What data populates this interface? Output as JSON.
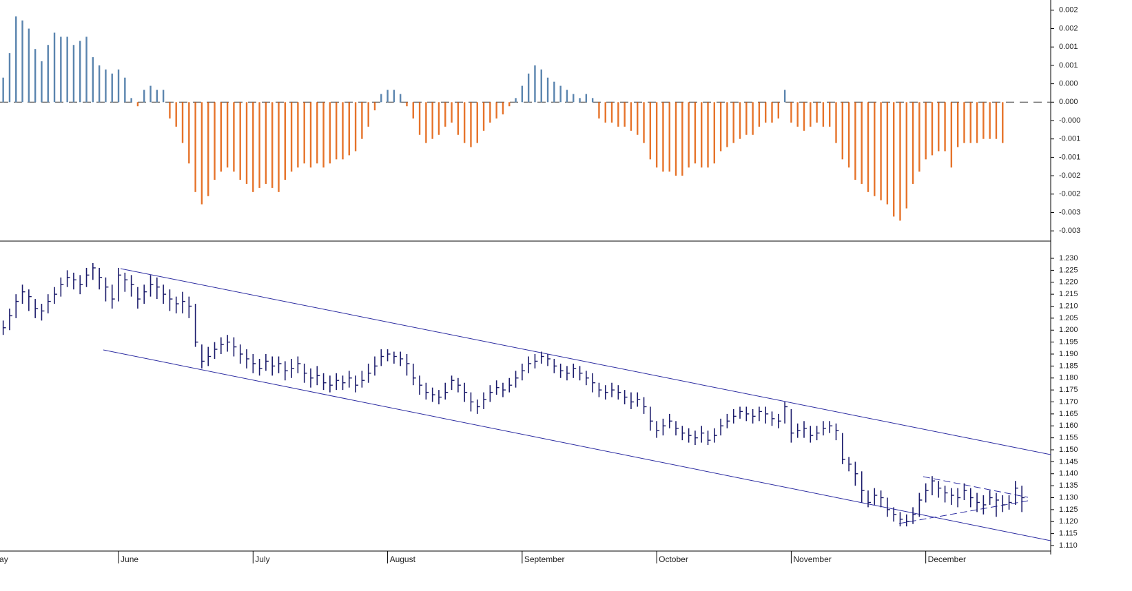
{
  "chart_data": [
    {
      "type": "histogram_bar",
      "color": "#5a84ae",
      "negative_color": "#e6732a",
      "zero_line": "dashed",
      "xlim": [
        -0.5,
        163.5
      ],
      "ylim": [
        -0.0034,
        0.0025
      ],
      "yticks": [
        {
          "value": 0.00225,
          "label": "0.002"
        },
        {
          "value": 0.0018,
          "label": "0.002"
        },
        {
          "value": 0.00135,
          "label": "0.001"
        },
        {
          "value": 0.0009,
          "label": "0.001"
        },
        {
          "value": 0.00045,
          "label": "0.000"
        },
        {
          "value": 0,
          "label": "0.000"
        },
        {
          "value": -0.00045,
          "label": "-0.000"
        },
        {
          "value": -0.0009,
          "label": "-0.001"
        },
        {
          "value": -0.00135,
          "label": "-0.001"
        },
        {
          "value": -0.0018,
          "label": "-0.002"
        },
        {
          "value": -0.00225,
          "label": "-0.002"
        },
        {
          "value": -0.0027,
          "label": "-0.003"
        },
        {
          "value": -0.00315,
          "label": "-0.003"
        }
      ],
      "values": [
        0.0006,
        0.0012,
        0.0021,
        0.002,
        0.0018,
        0.0013,
        0.001,
        0.0014,
        0.0017,
        0.0016,
        0.0016,
        0.0014,
        0.0015,
        0.0016,
        0.0011,
        0.0009,
        0.0008,
        0.0007,
        0.0008,
        0.0006,
        0.0001,
        -0.0001,
        0.0003,
        0.0004,
        0.0003,
        0.0003,
        -0.0004,
        -0.0006,
        -0.001,
        -0.0015,
        -0.0022,
        -0.0025,
        -0.0023,
        -0.0019,
        -0.0017,
        -0.0016,
        -0.0017,
        -0.0019,
        -0.002,
        -0.0022,
        -0.0021,
        -0.002,
        -0.0021,
        -0.0022,
        -0.0019,
        -0.0017,
        -0.0016,
        -0.0015,
        -0.0016,
        -0.0015,
        -0.0016,
        -0.0015,
        -0.0014,
        -0.0014,
        -0.0013,
        -0.0012,
        -0.0009,
        -0.0006,
        -0.0002,
        0.0002,
        0.0003,
        0.0003,
        0.0002,
        -0.0001,
        -0.0004,
        -0.0008,
        -0.001,
        -0.0009,
        -0.0008,
        -0.0006,
        -0.0005,
        -0.0008,
        -0.001,
        -0.0011,
        -0.001,
        -0.0007,
        -0.0005,
        -0.0004,
        -0.0003,
        -0.0001,
        0.0001,
        0.0004,
        0.0007,
        0.0009,
        0.0008,
        0.0006,
        0.0005,
        0.0004,
        0.0003,
        0.0002,
        0.0001,
        0.0002,
        0.0001,
        -0.0004,
        -0.0005,
        -0.0005,
        -0.0006,
        -0.0006,
        -0.0007,
        -0.0008,
        -0.001,
        -0.0014,
        -0.0016,
        -0.0017,
        -0.0017,
        -0.0018,
        -0.0018,
        -0.0016,
        -0.0015,
        -0.0016,
        -0.0016,
        -0.0015,
        -0.0012,
        -0.0011,
        -0.001,
        -0.0009,
        -0.0008,
        -0.0008,
        -0.0006,
        -0.0005,
        -0.0005,
        -0.0004,
        0.0003,
        -0.0005,
        -0.0006,
        -0.0007,
        -0.0006,
        -0.0005,
        -0.0006,
        -0.0006,
        -0.001,
        -0.0014,
        -0.0016,
        -0.0019,
        -0.002,
        -0.0022,
        -0.0023,
        -0.0024,
        -0.0025,
        -0.0028,
        -0.0029,
        -0.0026,
        -0.002,
        -0.0017,
        -0.0014,
        -0.0013,
        -0.0012,
        -0.0012,
        -0.0016,
        -0.0011,
        -0.001,
        -0.001,
        -0.001,
        -0.0009,
        -0.0009,
        -0.0009,
        -0.001,
        null,
        null,
        null
      ]
    },
    {
      "type": "ohlc",
      "color": "#1b1b6b",
      "xlim": [
        -0.5,
        163.5
      ],
      "ylim": [
        1.1077,
        1.2372
      ],
      "xticks": [
        {
          "value": -2,
          "label": "May"
        },
        {
          "value": 18,
          "label": "June"
        },
        {
          "value": 39,
          "label": "July"
        },
        {
          "value": 60,
          "label": "August"
        },
        {
          "value": 81,
          "label": "September"
        },
        {
          "value": 102,
          "label": "October"
        },
        {
          "value": 123,
          "label": "November"
        },
        {
          "value": 144,
          "label": "December"
        }
      ],
      "yticks": [
        {
          "value": 1.11,
          "label": "1.110"
        },
        {
          "value": 1.115,
          "label": "1.115"
        },
        {
          "value": 1.12,
          "label": "1.120"
        },
        {
          "value": 1.125,
          "label": "1.125"
        },
        {
          "value": 1.13,
          "label": "1.130"
        },
        {
          "value": 1.135,
          "label": "1.135"
        },
        {
          "value": 1.14,
          "label": "1.140"
        },
        {
          "value": 1.145,
          "label": "1.145"
        },
        {
          "value": 1.15,
          "label": "1.150"
        },
        {
          "value": 1.155,
          "label": "1.155"
        },
        {
          "value": 1.16,
          "label": "1.160"
        },
        {
          "value": 1.165,
          "label": "1.165"
        },
        {
          "value": 1.17,
          "label": "1.170"
        },
        {
          "value": 1.175,
          "label": "1.175"
        },
        {
          "value": 1.18,
          "label": "1.180"
        },
        {
          "value": 1.185,
          "label": "1.185"
        },
        {
          "value": 1.19,
          "label": "1.190"
        },
        {
          "value": 1.195,
          "label": "1.195"
        },
        {
          "value": 1.2,
          "label": "1.200"
        },
        {
          "value": 1.205,
          "label": "1.205"
        },
        {
          "value": 1.21,
          "label": "1.210"
        },
        {
          "value": 1.215,
          "label": "1.215"
        },
        {
          "value": 1.22,
          "label": "1.220"
        },
        {
          "value": 1.225,
          "label": "1.225"
        },
        {
          "value": 1.23,
          "label": "1.230"
        }
      ],
      "high": [
        1.204,
        1.209,
        1.215,
        1.219,
        1.217,
        1.213,
        1.211,
        1.215,
        1.218,
        1.222,
        1.225,
        1.224,
        1.223,
        1.226,
        1.228,
        1.226,
        1.222,
        1.219,
        1.226,
        1.224,
        1.223,
        1.218,
        1.219,
        1.223,
        1.222,
        1.219,
        1.217,
        1.214,
        1.216,
        1.214,
        1.211,
        1.194,
        1.193,
        1.195,
        1.197,
        1.198,
        1.197,
        1.194,
        1.192,
        1.19,
        1.188,
        1.19,
        1.189,
        1.189,
        1.187,
        1.188,
        1.189,
        1.186,
        1.184,
        1.185,
        1.182,
        1.181,
        1.182,
        1.181,
        1.183,
        1.181,
        1.183,
        1.186,
        1.189,
        1.192,
        1.192,
        1.191,
        1.191,
        1.19,
        1.186,
        1.181,
        1.178,
        1.176,
        1.175,
        1.178,
        1.181,
        1.18,
        1.178,
        1.174,
        1.171,
        1.174,
        1.177,
        1.179,
        1.178,
        1.18,
        1.183,
        1.186,
        1.189,
        1.19,
        1.191,
        1.19,
        1.188,
        1.186,
        1.185,
        1.186,
        1.185,
        1.183,
        1.182,
        1.178,
        1.177,
        1.178,
        1.177,
        1.175,
        1.174,
        1.174,
        1.172,
        1.168,
        1.162,
        1.163,
        1.165,
        1.162,
        1.16,
        1.159,
        1.158,
        1.16,
        1.158,
        1.159,
        1.163,
        1.165,
        1.167,
        1.168,
        1.168,
        1.167,
        1.168,
        1.168,
        1.166,
        1.165,
        1.17,
        1.167,
        1.161,
        1.162,
        1.16,
        1.16,
        1.162,
        1.162,
        1.161,
        1.157,
        1.147,
        1.145,
        1.141,
        1.133,
        1.134,
        1.133,
        1.13,
        1.126,
        1.124,
        1.123,
        1.126,
        1.132,
        1.136,
        1.139,
        1.137,
        1.135,
        1.134,
        1.134,
        1.136,
        1.134,
        1.132,
        1.131,
        1.133,
        1.132,
        1.131,
        1.131,
        1.137,
        1.135
      ],
      "low": [
        1.198,
        1.2,
        1.205,
        1.211,
        1.208,
        1.205,
        1.204,
        1.207,
        1.211,
        1.214,
        1.218,
        1.217,
        1.215,
        1.218,
        1.221,
        1.217,
        1.212,
        1.209,
        1.212,
        1.216,
        1.214,
        1.209,
        1.211,
        1.214,
        1.213,
        1.211,
        1.208,
        1.207,
        1.207,
        1.205,
        1.193,
        1.184,
        1.185,
        1.188,
        1.19,
        1.191,
        1.189,
        1.186,
        1.184,
        1.182,
        1.181,
        1.183,
        1.181,
        1.182,
        1.179,
        1.18,
        1.182,
        1.178,
        1.176,
        1.177,
        1.175,
        1.174,
        1.175,
        1.175,
        1.176,
        1.174,
        1.176,
        1.178,
        1.181,
        1.185,
        1.187,
        1.186,
        1.185,
        1.181,
        1.177,
        1.173,
        1.171,
        1.17,
        1.169,
        1.171,
        1.175,
        1.174,
        1.17,
        1.166,
        1.165,
        1.167,
        1.17,
        1.173,
        1.172,
        1.174,
        1.176,
        1.179,
        1.182,
        1.184,
        1.186,
        1.185,
        1.182,
        1.18,
        1.179,
        1.18,
        1.179,
        1.177,
        1.174,
        1.172,
        1.171,
        1.172,
        1.171,
        1.169,
        1.167,
        1.168,
        1.165,
        1.158,
        1.155,
        1.156,
        1.159,
        1.156,
        1.154,
        1.153,
        1.152,
        1.153,
        1.152,
        1.153,
        1.156,
        1.159,
        1.161,
        1.163,
        1.162,
        1.161,
        1.162,
        1.161,
        1.16,
        1.159,
        1.161,
        1.153,
        1.155,
        1.155,
        1.153,
        1.154,
        1.156,
        1.157,
        1.154,
        1.144,
        1.141,
        1.135,
        1.128,
        1.126,
        1.127,
        1.126,
        1.122,
        1.12,
        1.118,
        1.118,
        1.119,
        1.122,
        1.128,
        1.131,
        1.13,
        1.128,
        1.127,
        1.126,
        1.129,
        1.126,
        1.124,
        1.123,
        1.127,
        1.122,
        1.124,
        1.125,
        1.127,
        1.124
      ],
      "close": [
        1.201,
        1.206,
        1.212,
        1.216,
        1.214,
        1.209,
        1.208,
        1.212,
        1.215,
        1.219,
        1.222,
        1.221,
        1.219,
        1.223,
        1.226,
        1.222,
        1.218,
        1.213,
        1.223,
        1.221,
        1.219,
        1.213,
        1.216,
        1.219,
        1.218,
        1.215,
        1.213,
        1.211,
        1.212,
        1.21,
        1.195,
        1.187,
        1.189,
        1.192,
        1.194,
        1.195,
        1.193,
        1.19,
        1.188,
        1.186,
        1.184,
        1.187,
        1.185,
        1.186,
        1.183,
        1.184,
        1.186,
        1.182,
        1.18,
        1.181,
        1.178,
        1.177,
        1.179,
        1.178,
        1.18,
        1.177,
        1.179,
        1.182,
        1.185,
        1.189,
        1.19,
        1.189,
        1.188,
        1.186,
        1.18,
        1.177,
        1.174,
        1.173,
        1.172,
        1.174,
        1.179,
        1.177,
        1.174,
        1.17,
        1.168,
        1.171,
        1.174,
        1.176,
        1.175,
        1.177,
        1.18,
        1.183,
        1.186,
        1.187,
        1.189,
        1.188,
        1.185,
        1.183,
        1.182,
        1.184,
        1.182,
        1.18,
        1.178,
        1.175,
        1.174,
        1.175,
        1.174,
        1.172,
        1.17,
        1.171,
        1.168,
        1.162,
        1.158,
        1.16,
        1.162,
        1.159,
        1.157,
        1.156,
        1.155,
        1.157,
        1.154,
        1.156,
        1.16,
        1.162,
        1.164,
        1.166,
        1.165,
        1.164,
        1.166,
        1.165,
        1.163,
        1.162,
        1.168,
        1.157,
        1.158,
        1.159,
        1.156,
        1.157,
        1.159,
        1.16,
        1.158,
        1.146,
        1.144,
        1.14,
        1.133,
        1.128,
        1.131,
        1.13,
        1.125,
        1.123,
        1.121,
        1.12,
        1.123,
        1.129,
        1.133,
        1.137,
        1.134,
        1.132,
        1.131,
        1.13,
        1.133,
        1.13,
        1.128,
        1.127,
        1.13,
        1.129,
        1.127,
        1.128,
        1.134,
        1.13
      ]
    }
  ]
}
